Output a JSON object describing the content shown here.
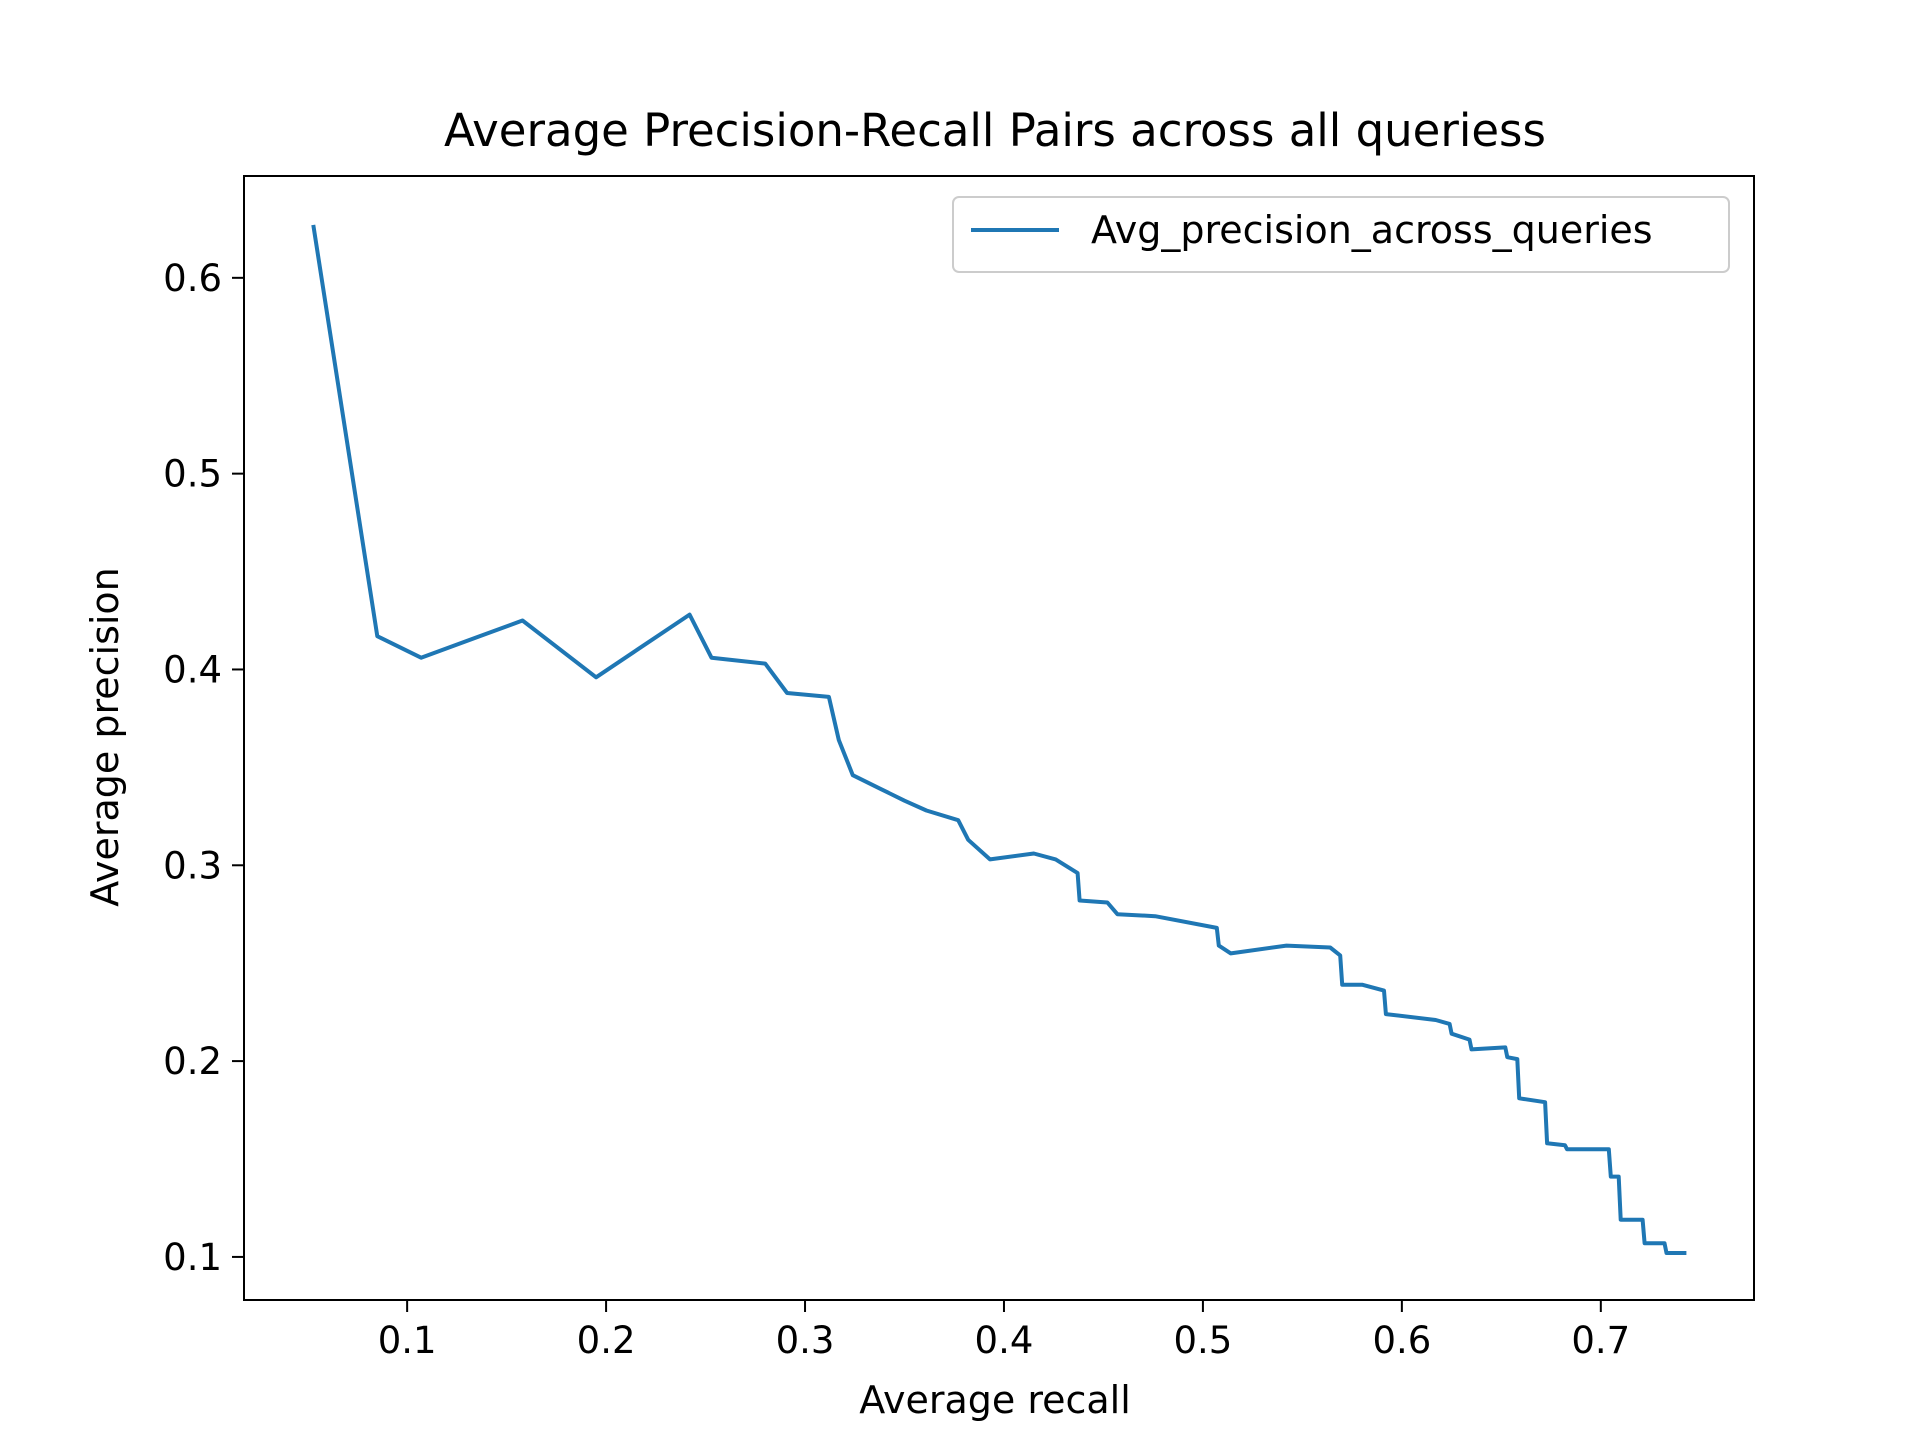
{
  "chart_data": {
    "type": "line",
    "title": "Average Precision-Recall Pairs across all queriess",
    "xlabel": "Average recall",
    "ylabel": "Average precision",
    "xlim": [
      0.018,
      0.777
    ],
    "ylim": [
      0.078,
      0.652
    ],
    "xticks": [
      0.1,
      0.2,
      0.3,
      0.4,
      0.5,
      0.6,
      0.7
    ],
    "xtick_labels": [
      "0.1",
      "0.2",
      "0.3",
      "0.4",
      "0.5",
      "0.6",
      "0.7"
    ],
    "yticks": [
      0.1,
      0.2,
      0.3,
      0.4,
      0.5,
      0.6
    ],
    "ytick_labels": [
      "0.1",
      "0.2",
      "0.3",
      "0.4",
      "0.5",
      "0.6"
    ],
    "grid": false,
    "legend": {
      "position": "top-right",
      "entries": [
        "Avg_precision_across_queries"
      ]
    },
    "colors": {
      "series": "#1f77b4",
      "axes": "#000000",
      "legend_border": "#cccccc"
    },
    "series": [
      {
        "name": "Avg_precision_across_queries",
        "x": [
          0.053,
          0.085,
          0.107,
          0.158,
          0.195,
          0.242,
          0.253,
          0.28,
          0.291,
          0.312,
          0.317,
          0.324,
          0.338,
          0.35,
          0.361,
          0.377,
          0.382,
          0.393,
          0.415,
          0.426,
          0.437,
          0.438,
          0.452,
          0.457,
          0.476,
          0.507,
          0.508,
          0.514,
          0.542,
          0.564,
          0.569,
          0.57,
          0.58,
          0.591,
          0.592,
          0.617,
          0.624,
          0.625,
          0.634,
          0.635,
          0.652,
          0.653,
          0.658,
          0.659,
          0.672,
          0.673,
          0.682,
          0.683,
          0.704,
          0.705,
          0.709,
          0.71,
          0.721,
          0.722,
          0.732,
          0.733,
          0.742
        ],
        "y": [
          0.626,
          0.417,
          0.406,
          0.425,
          0.396,
          0.428,
          0.406,
          0.403,
          0.388,
          0.386,
          0.364,
          0.346,
          0.339,
          0.333,
          0.328,
          0.323,
          0.313,
          0.303,
          0.306,
          0.303,
          0.296,
          0.282,
          0.281,
          0.275,
          0.274,
          0.268,
          0.259,
          0.255,
          0.259,
          0.258,
          0.254,
          0.239,
          0.239,
          0.236,
          0.224,
          0.221,
          0.219,
          0.214,
          0.211,
          0.206,
          0.207,
          0.202,
          0.201,
          0.181,
          0.179,
          0.158,
          0.157,
          0.155,
          0.155,
          0.141,
          0.141,
          0.119,
          0.119,
          0.107,
          0.107,
          0.102,
          0.102
        ]
      }
    ]
  }
}
